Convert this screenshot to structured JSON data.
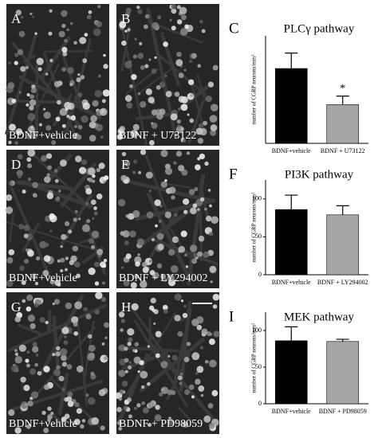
{
  "panels": [
    {
      "label": "A",
      "caption": "BDNF+vehicle"
    },
    {
      "label": "B",
      "caption": "BDNF + U73122"
    },
    {
      "label": "D",
      "caption": "BDNF+vehicle"
    },
    {
      "label": "E",
      "caption": "BDNF + LY294002"
    },
    {
      "label": "G",
      "caption": "BDNF+vehicle"
    },
    {
      "label": "H",
      "caption": "BDNF + PD98059"
    }
  ],
  "chart_data": [
    {
      "type": "bar",
      "panel_label": "C",
      "title": "PLCγ pathway",
      "y_label": "number of CGRP neurons/mm²",
      "categories": [
        "BDNF+vehicle",
        "BDNF + U73122"
      ],
      "values": [
        87,
        45
      ],
      "errors": [
        18,
        10
      ],
      "colors": [
        "#000000",
        "#a6a6a6"
      ],
      "annotations": [
        {
          "category": 1,
          "text": "*"
        }
      ],
      "ylim": [
        0,
        125
      ]
    },
    {
      "type": "bar",
      "panel_label": "F",
      "title": "PI3K pathway",
      "y_label": "number of CGRP neurons/mm²",
      "categories": [
        "BDNF+vehicle",
        "BDNF + LY294002"
      ],
      "values": [
        86,
        79
      ],
      "errors": [
        19,
        12
      ],
      "colors": [
        "#000000",
        "#a6a6a6"
      ],
      "ylim": [
        0,
        125
      ],
      "yticks": [
        0,
        50,
        100
      ]
    },
    {
      "type": "bar",
      "panel_label": "I",
      "title": "MEK pathway",
      "y_label": "number of CGRP neurons/mm²",
      "categories": [
        "BDNF+vehicle",
        "BDNF + PD98059"
      ],
      "values": [
        86,
        85
      ],
      "errors": [
        19,
        3
      ],
      "colors": [
        "#000000",
        "#a6a6a6"
      ],
      "ylim": [
        0,
        125
      ],
      "yticks": [
        0,
        50,
        100
      ]
    }
  ]
}
